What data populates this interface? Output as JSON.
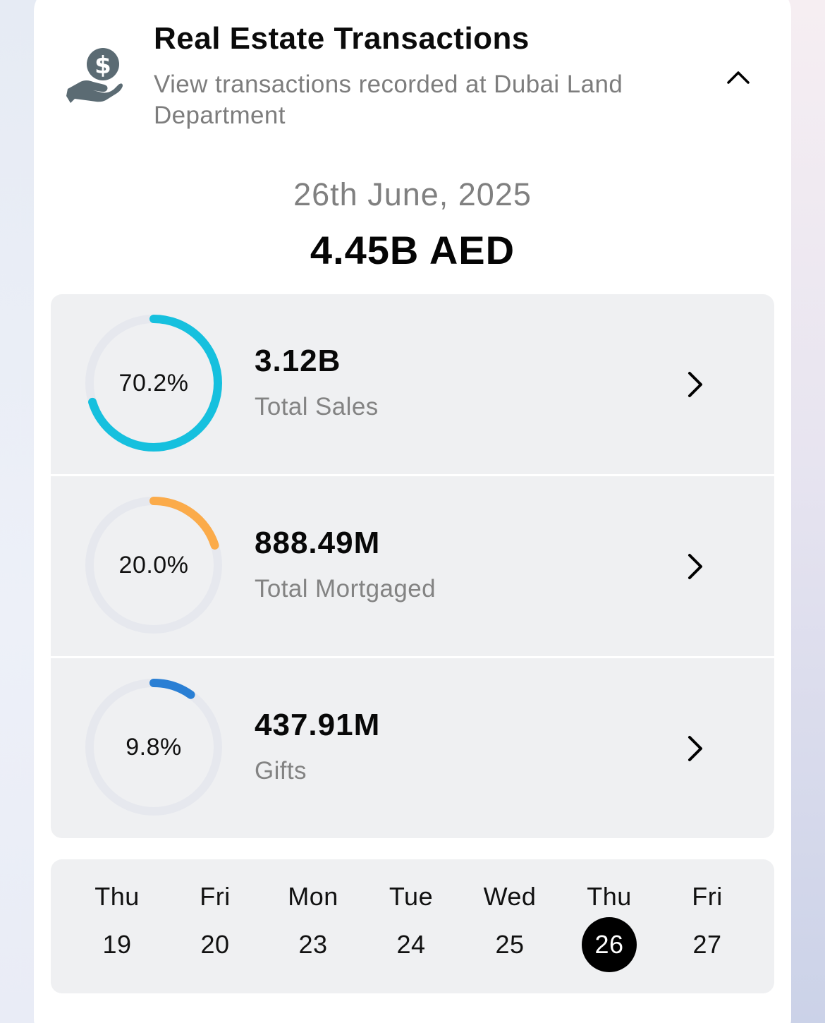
{
  "header": {
    "icon": "hand-dollar-icon",
    "title": "Real Estate Transactions",
    "subtitle": "View transactions recorded at Dubai Land Department",
    "collapse_icon": "chevron-up-icon"
  },
  "summary": {
    "date": "26th June, 2025",
    "total": "4.45B AED"
  },
  "stats": [
    {
      "percent_label": "70.2%",
      "percent": 70.2,
      "value": "3.12B",
      "label": "Total Sales",
      "color": "#16c0de"
    },
    {
      "percent_label": "20.0%",
      "percent": 20.0,
      "value": "888.49M",
      "label": "Total Mortgaged",
      "color": "#fbab4a"
    },
    {
      "percent_label": "9.8%",
      "percent": 9.8,
      "value": "437.91M",
      "label": "Gifts",
      "color": "#2a7fd4"
    }
  ],
  "calendar": {
    "days": [
      {
        "name": "Thu",
        "num": "19"
      },
      {
        "name": "Fri",
        "num": "20"
      },
      {
        "name": "Mon",
        "num": "23"
      },
      {
        "name": "Tue",
        "num": "24"
      },
      {
        "name": "Wed",
        "num": "25"
      },
      {
        "name": "Thu",
        "num": "26"
      },
      {
        "name": "Fri",
        "num": "27"
      }
    ],
    "selected_index": 5
  },
  "colors": {
    "ring_track": "#e6e8ee",
    "icon": "#5b6b73"
  }
}
